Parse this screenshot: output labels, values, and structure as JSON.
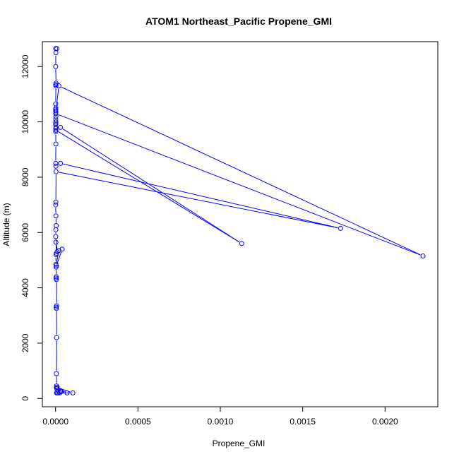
{
  "chart_data": {
    "type": "line",
    "title": "ATOM1 Northeast_Pacific Propene_GMI",
    "xlabel": "Propene_GMI",
    "ylabel": "Altitude (m)",
    "xlim": [
      -8e-05,
      0.00232
    ],
    "ylim": [
      -300,
      12900
    ],
    "xticks": [
      0.0,
      0.0005,
      0.001,
      0.0015,
      0.002
    ],
    "xtick_labels": [
      "0.0000",
      "0.0005",
      "0.0010",
      "0.0015",
      "0.0020"
    ],
    "yticks": [
      0,
      2000,
      4000,
      6000,
      8000,
      10000,
      12000
    ],
    "ytick_labels": [
      "0",
      "2000",
      "4000",
      "6000",
      "8000",
      "10000",
      "12000"
    ],
    "grid": false,
    "series_color": "#0000ff",
    "series": [
      {
        "x": [
          8e-06,
          1e-06,
          2e-06,
          1e-06,
          3e-06,
          1e-06,
          2e-06,
          1e-06,
          2e-06,
          1e-06,
          1e-06,
          2e-06,
          2e-05,
          0.00223,
          1e-06,
          2e-06,
          1e-06,
          2e-06,
          1e-06,
          1e-06,
          2e-06,
          1e-06,
          3e-05,
          0.00113,
          2e-06,
          1e-06,
          2e-06,
          1e-06,
          2e-06,
          3e-05,
          0.00173,
          3e-06,
          2e-06,
          1e-06,
          2e-06,
          4e-06,
          2e-06,
          1e-06,
          1e-05,
          2e-06,
          5e-06,
          3e-06,
          2e-06,
          4e-06,
          2e-05,
          4e-05,
          3e-06,
          4e-06,
          3e-06,
          5e-06,
          6e-06,
          4e-06,
          5e-06,
          6e-06,
          5e-06,
          6e-06,
          6e-06,
          7e-06,
          6e-06,
          1e-05,
          0.000105,
          1e-05,
          7e-05,
          3e-05,
          1.5e-05,
          3.5e-05,
          2.5e-05,
          1.5e-05
        ],
        "y": [
          12650,
          12650,
          12500,
          12000,
          11400,
          11350,
          11300,
          10650,
          10500,
          10450,
          10400,
          10350,
          11300,
          5150,
          10300,
          10200,
          10100,
          10000,
          9950,
          9900,
          9800,
          9750,
          9800,
          5600,
          9700,
          9650,
          9200,
          8500,
          8400,
          8500,
          6150,
          8200,
          7100,
          7000,
          6600,
          6250,
          6100,
          5850,
          5300,
          5650,
          5250,
          5200,
          4850,
          4800,
          5350,
          5400,
          4750,
          4400,
          4350,
          4300,
          3350,
          3300,
          3250,
          2200,
          900,
          450,
          400,
          350,
          200,
          200,
          200,
          400,
          200,
          250,
          300,
          250,
          200,
          200
        ]
      }
    ]
  }
}
